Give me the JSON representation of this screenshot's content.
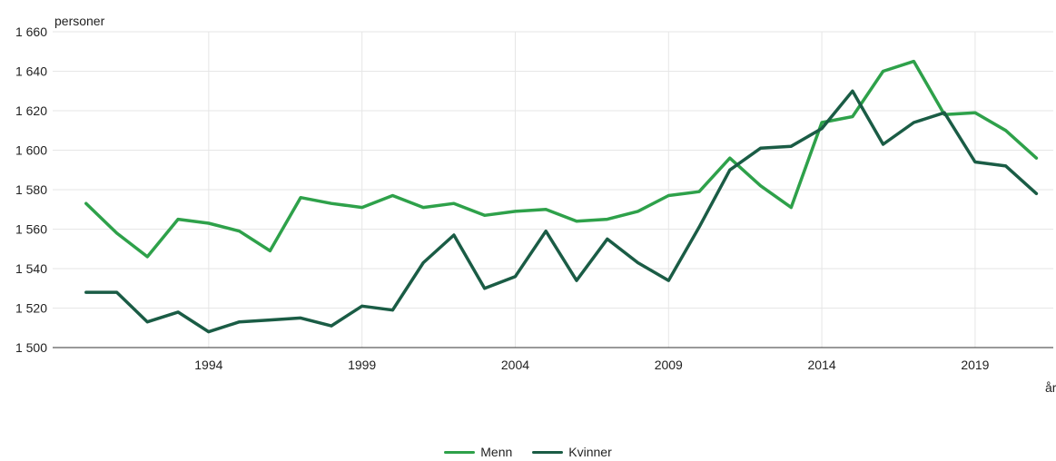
{
  "chart_data": {
    "type": "line",
    "ylabel": "personer",
    "xlabel": "år",
    "ylim": [
      1500,
      1660
    ],
    "yticks": [
      1500,
      1520,
      1540,
      1560,
      1580,
      1600,
      1620,
      1640,
      1660
    ],
    "ytick_labels": [
      "1 500",
      "1 520",
      "1 540",
      "1 560",
      "1 580",
      "1 600",
      "1 620",
      "1 640",
      "1 660"
    ],
    "xticks": [
      1994,
      1999,
      2004,
      2009,
      2014,
      2019
    ],
    "xtick_labels": [
      "1994",
      "1999",
      "2004",
      "2009",
      "2014",
      "2019"
    ],
    "x": [
      1990,
      1991,
      1992,
      1993,
      1994,
      1995,
      1996,
      1997,
      1998,
      1999,
      2000,
      2001,
      2002,
      2003,
      2004,
      2005,
      2006,
      2007,
      2008,
      2009,
      2010,
      2011,
      2012,
      2013,
      2014,
      2015,
      2016,
      2017,
      2018,
      2019,
      2020,
      2021
    ],
    "grid": true,
    "legend_position": "bottom",
    "series": [
      {
        "name": "Menn",
        "color": "#2ea14a",
        "values": [
          1573,
          1558,
          1546,
          1565,
          1563,
          1559,
          1549,
          1576,
          1573,
          1571,
          1577,
          1571,
          1573,
          1567,
          1569,
          1570,
          1564,
          1565,
          1569,
          1577,
          1579,
          1596,
          1582,
          1571,
          1614,
          1617,
          1640,
          1645,
          1618,
          1619,
          1610,
          1596
        ]
      },
      {
        "name": "Kvinner",
        "color": "#1a5c45",
        "values": [
          1528,
          1528,
          1513,
          1518,
          1508,
          1513,
          1514,
          1515,
          1511,
          1521,
          1519,
          1543,
          1557,
          1530,
          1536,
          1559,
          1534,
          1555,
          1543,
          1534,
          1561,
          1590,
          1601,
          1602,
          1611,
          1630,
          1603,
          1614,
          1619,
          1594,
          1592,
          1578
        ]
      }
    ]
  }
}
